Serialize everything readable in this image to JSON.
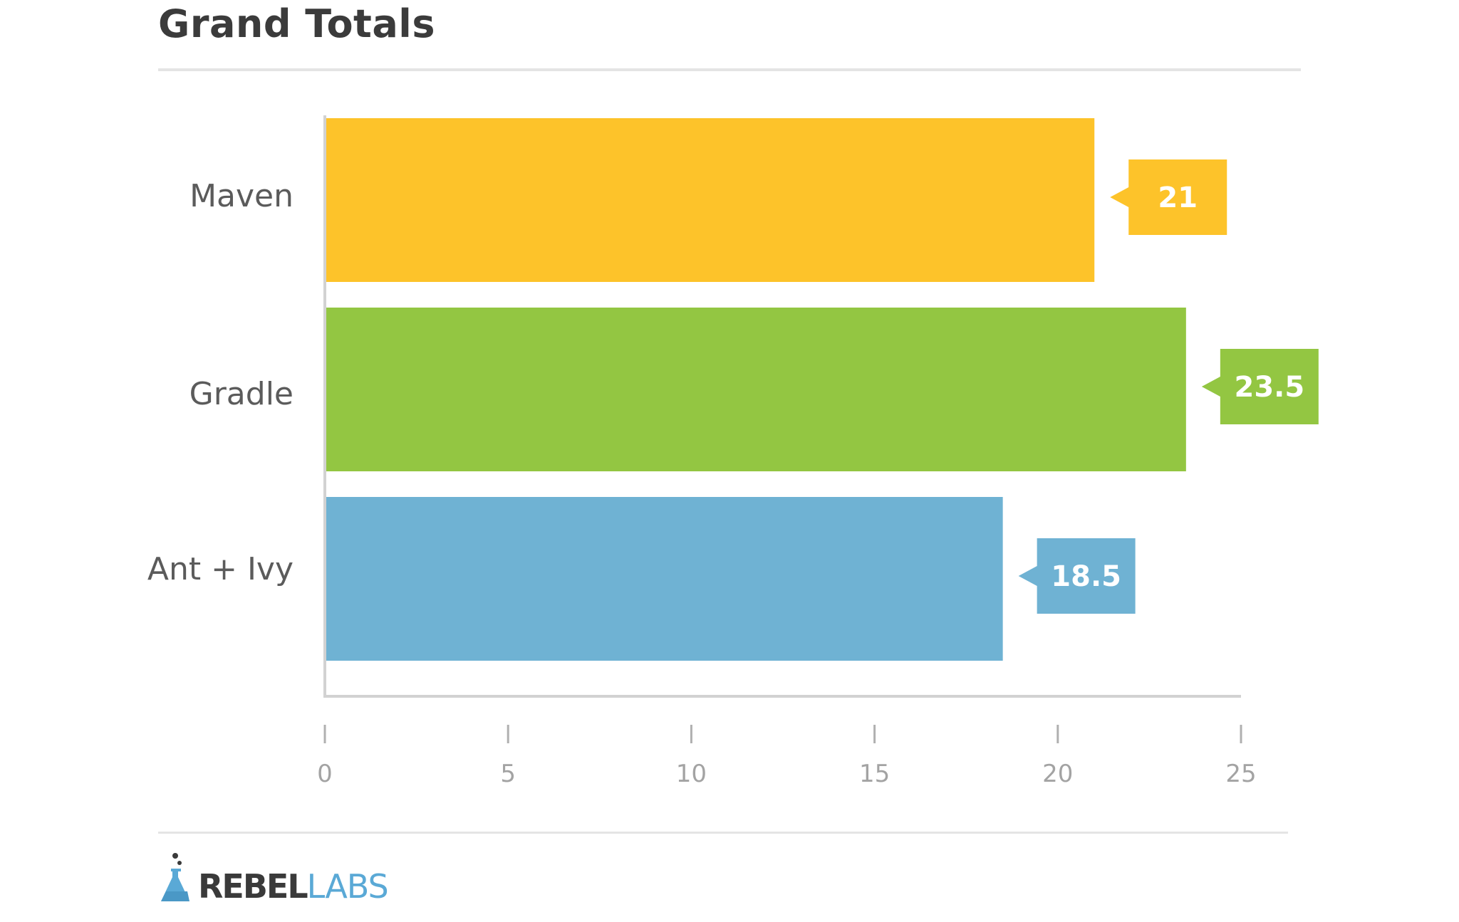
{
  "chart_data": {
    "type": "bar",
    "orientation": "horizontal",
    "title": "Grand Totals",
    "categories": [
      "Maven",
      "Gradle",
      "Ant + Ivy"
    ],
    "values": [
      21,
      23.5,
      18.5
    ],
    "value_labels": [
      "21",
      "23.5",
      "18.5"
    ],
    "colors": [
      "#fdc32a",
      "#93c642",
      "#6fb2d3"
    ],
    "xlim": [
      0,
      25
    ],
    "xticks": [
      "0",
      "5",
      "10",
      "15",
      "20",
      "25"
    ],
    "xlabel": "",
    "ylabel": "",
    "grid": false,
    "legend": "none"
  },
  "branding": {
    "logo_icon": "flask-icon",
    "name_part1": "REBEL",
    "name_part2": "LABS"
  },
  "colors": {
    "axis": "#d2d2d2",
    "title_text": "#3b3b3b",
    "brand_accent": "#5aa9d6"
  }
}
